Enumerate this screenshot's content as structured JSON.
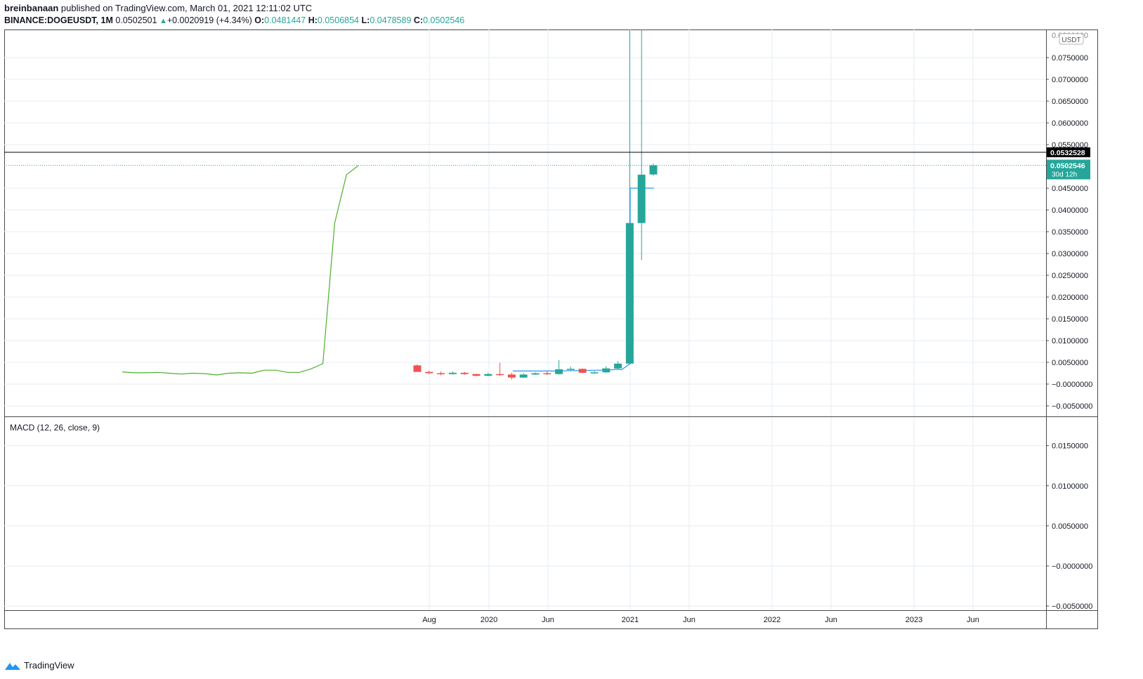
{
  "header": {
    "author": "breinbanaan",
    "published_text": "published on TradingView.com, March 01, 2021 12:11:02 UTC",
    "symbol": "BINANCE:DOGEUSDT, 1M",
    "last_price": "0.0502501",
    "change": "+0.0020919 (+4.34%)",
    "change_arrow": "▲",
    "open_label": "O:",
    "open": "0.0481447",
    "high_label": "H:",
    "high": "0.0506854",
    "low_label": "L:",
    "low": "0.0478589",
    "close_label": "C:",
    "close": "0.0502546"
  },
  "price_axis": {
    "currency": "USDT",
    "top_partial": "0.0800000",
    "horizontal_line_price": "0.0532528",
    "current_price": "0.0502546",
    "countdown": "30d 12h"
  },
  "macd": {
    "title": "MACD (12, 26, close, 9)"
  },
  "time_axis": [
    "Aug",
    "2020",
    "Jun",
    "2021",
    "Jun",
    "2022",
    "Jun",
    "2023",
    "Jun"
  ],
  "brand": {
    "name": "TradingView"
  },
  "colors": {
    "up": "#26a69a",
    "down": "#ef5350",
    "line_green": "#4caf2a",
    "line_blue": "#2196f3",
    "grid": "#e6edf3"
  },
  "chart_data": {
    "type": "candlestick",
    "title": "BINANCE:DOGEUSDT, 1M",
    "y_ticks_main": [
      "0.0750000",
      "0.0700000",
      "0.0650000",
      "0.0600000",
      "0.0550000",
      "0.0450000",
      "0.0400000",
      "0.0350000",
      "0.0300000",
      "0.0250000",
      "0.0200000",
      "0.0150000",
      "0.0100000",
      "0.0050000",
      "−0.0000000",
      "−0.0050000"
    ],
    "y_ticks_macd": [
      "0.0150000",
      "0.0100000",
      "0.0050000",
      "−0.0000000",
      "−0.0050000"
    ],
    "ylim_main": [
      -0.0075,
      0.08
    ],
    "ylim_macd": [
      -0.005,
      0.0175
    ],
    "candles": [
      {
        "o": 0.0043,
        "h": 0.0045,
        "l": 0.0028,
        "c": 0.0028
      },
      {
        "o": 0.0028,
        "h": 0.0031,
        "l": 0.0023,
        "c": 0.0025
      },
      {
        "o": 0.0025,
        "h": 0.0029,
        "l": 0.002,
        "c": 0.0023
      },
      {
        "o": 0.0023,
        "h": 0.0029,
        "l": 0.0022,
        "c": 0.0026
      },
      {
        "o": 0.0026,
        "h": 0.0028,
        "l": 0.0021,
        "c": 0.0023
      },
      {
        "o": 0.0023,
        "h": 0.0024,
        "l": 0.0018,
        "c": 0.0019
      },
      {
        "o": 0.0019,
        "h": 0.0026,
        "l": 0.0018,
        "c": 0.0023
      },
      {
        "o": 0.0023,
        "h": 0.0049,
        "l": 0.0019,
        "c": 0.0022
      },
      {
        "o": 0.0022,
        "h": 0.0026,
        "l": 0.001,
        "c": 0.0015
      },
      {
        "o": 0.0015,
        "h": 0.0025,
        "l": 0.0014,
        "c": 0.0022
      },
      {
        "o": 0.0022,
        "h": 0.0027,
        "l": 0.0021,
        "c": 0.0025
      },
      {
        "o": 0.0025,
        "h": 0.0029,
        "l": 0.0021,
        "c": 0.0023
      },
      {
        "o": 0.0023,
        "h": 0.0055,
        "l": 0.0022,
        "c": 0.0034
      },
      {
        "o": 0.0034,
        "h": 0.004,
        "l": 0.0032,
        "c": 0.0035
      },
      {
        "o": 0.0035,
        "h": 0.0036,
        "l": 0.0025,
        "c": 0.0026
      },
      {
        "o": 0.0026,
        "h": 0.003,
        "l": 0.0024,
        "c": 0.0027
      },
      {
        "o": 0.0027,
        "h": 0.0041,
        "l": 0.0025,
        "c": 0.0036
      },
      {
        "o": 0.0036,
        "h": 0.0053,
        "l": 0.0034,
        "c": 0.0047
      },
      {
        "o": 0.0047,
        "h": 0.087,
        "l": 0.0046,
        "c": 0.037
      },
      {
        "o": 0.037,
        "h": 0.087,
        "l": 0.0285,
        "c": 0.0481
      },
      {
        "o": 0.0481447,
        "h": 0.0506854,
        "l": 0.0478589,
        "c": 0.0502546
      }
    ],
    "green_line": [
      0.0028,
      0.0026,
      0.0026,
      0.0027,
      0.0025,
      0.0023,
      0.0025,
      0.0024,
      0.0021,
      0.0025,
      0.0026,
      0.0025,
      0.0032,
      0.0032,
      0.0027,
      0.0027,
      0.0035,
      0.0047,
      0.037,
      0.0481,
      0.0502
    ],
    "blue_line": [
      0.003,
      0.003,
      0.0031,
      0.0032,
      0.0032,
      0.0034,
      0.0033,
      0.0047,
      0.045,
      0.045
    ],
    "grid": true
  }
}
